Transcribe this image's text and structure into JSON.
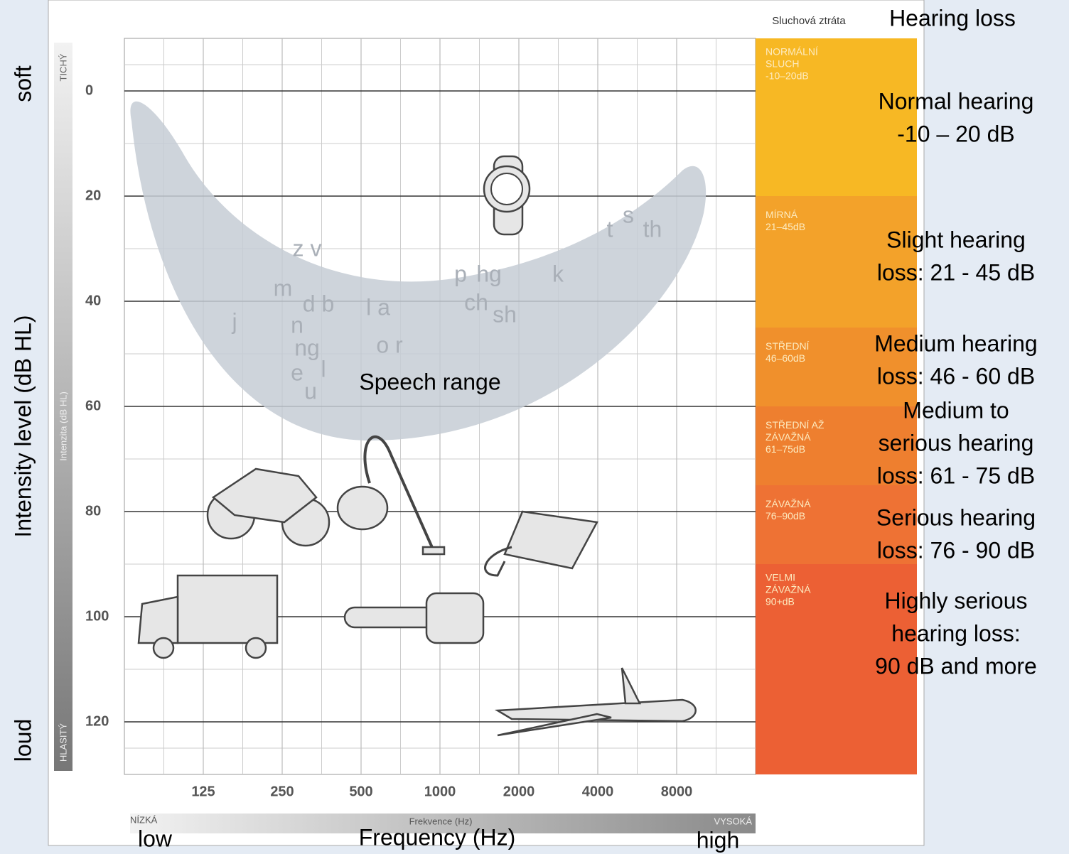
{
  "chart_data": {
    "type": "audiogram",
    "y_axis_label": "Intensity level (dB HL)",
    "y_axis_label_original": "Intenzita (dB HL)",
    "y_top_label": "soft",
    "y_top_label_original": "TICHÝ",
    "y_bottom_label": "loud",
    "y_bottom_label_original": "HLASITÝ",
    "x_axis_label": "Frequency (Hz)",
    "x_axis_label_original": "Frekvence (Hz)",
    "x_low_label": "low",
    "x_low_label_original": "NÍZKÁ",
    "x_high_label": "high",
    "x_high_label_original": "VYSOKÁ",
    "xlim": [
      62.5,
      16000
    ],
    "xticks": [
      125,
      250,
      500,
      1000,
      2000,
      4000,
      8000
    ],
    "log_x": true,
    "ylim": [
      -10,
      130
    ],
    "yticks": [
      0,
      20,
      40,
      60,
      80,
      100,
      120
    ],
    "y_inverted": true,
    "grid": true,
    "speech_range_label": "Speech range",
    "phonemes": [
      "t",
      "s",
      "th",
      "z v",
      "m",
      "d b",
      "j",
      "n",
      "ng",
      "e",
      "l",
      "u",
      "l a",
      "o r",
      "p",
      "hg",
      "k",
      "ch",
      "sh"
    ],
    "hearing_loss": {
      "title": "Hearing loss",
      "title_original": "Sluchová ztráta",
      "bands": [
        {
          "label_lines": [
            "Normal hearing",
            "-10 – 20 dB"
          ],
          "original_lines": [
            "NORMÁLNÍ",
            "SLUCH",
            "-10–20dB"
          ],
          "from": -10,
          "to": 20,
          "color": "#f7b824"
        },
        {
          "label_lines": [
            "Slight hearing",
            "loss: 21 - 45 dB"
          ],
          "original_lines": [
            "MÍRNÁ",
            "21–45dB"
          ],
          "from": 21,
          "to": 45,
          "color": "#f3a22a"
        },
        {
          "label_lines": [
            "Medium hearing",
            "loss: 46 - 60 dB"
          ],
          "original_lines": [
            "STŘEDNÍ",
            "46–60dB"
          ],
          "from": 46,
          "to": 60,
          "color": "#f0902c"
        },
        {
          "label_lines": [
            "Medium to",
            "serious hearing",
            "loss: 61 - 75 dB"
          ],
          "original_lines": [
            "STŘEDNÍ AŽ",
            "ZÁVAŽNÁ",
            "61–75dB"
          ],
          "from": 61,
          "to": 75,
          "color": "#ee7f2f"
        },
        {
          "label_lines": [
            "Serious hearing",
            "loss: 76 - 90 dB"
          ],
          "original_lines": [
            "ZÁVAŽNÁ",
            "76–90dB"
          ],
          "from": 76,
          "to": 90,
          "color": "#ee7234"
        },
        {
          "label_lines": [
            "Highly serious",
            "hearing loss:",
            "90 dB and more"
          ],
          "original_lines": [
            "VELMI",
            "ZÁVAŽNÁ",
            "90+dB"
          ],
          "from": 90,
          "color": "#ec6034"
        }
      ]
    }
  }
}
